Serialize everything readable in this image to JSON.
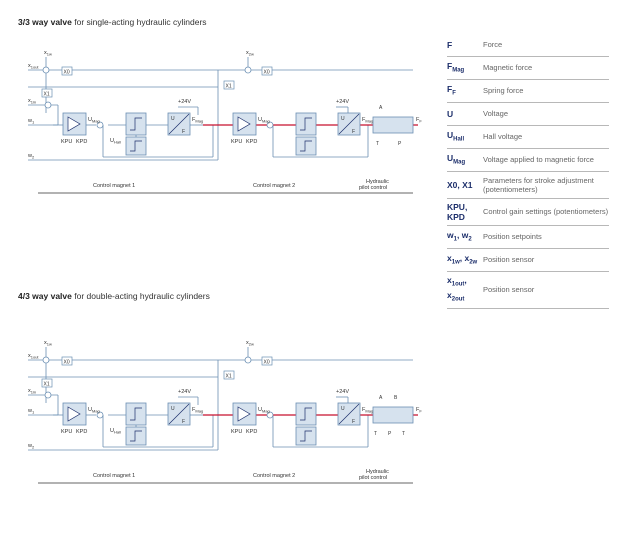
{
  "section1": {
    "title_bold": "3/3 way valve",
    "title_rest": " for single-acting hydraulic cylinders"
  },
  "section2": {
    "title_bold": "4/3 way valve",
    "title_rest": " for double-acting hydraulic cylinders"
  },
  "diagram_labels": {
    "x1w": "x",
    "x1w_sub": "1w",
    "x1out": "x",
    "x1out_sub": "1out",
    "x1in": "x",
    "x1in_sub": "1in",
    "w1": "w",
    "w1_sub": "1",
    "w2": "w",
    "w2_sub": "2",
    "x2w": "x",
    "x2w_sub": "2w",
    "x0": "X0",
    "x1": "X1",
    "umag": "U",
    "umag_sub": "Mag",
    "uhall": "U",
    "uhall_sub": "Hall",
    "kpu": "KPU",
    "kpd": "KPD",
    "v24": "+24V",
    "fmag": "F",
    "fmag_sub": "Mag",
    "ff": "F",
    "ff_sub": "F",
    "u": "U",
    "f": "F",
    "a": "A",
    "b": "B",
    "t": "T",
    "p": "P",
    "control_magnet_1": "Control magnet 1",
    "control_magnet_2": "Control magnet 2",
    "hydraulic": "Hydraulic",
    "pilot_control": "pilot control"
  },
  "legend": [
    {
      "sym": "F",
      "sub": "",
      "desc": "Force"
    },
    {
      "sym": "F",
      "sub": "Mag",
      "desc": "Magnetic force"
    },
    {
      "sym": "F",
      "sub": "F",
      "desc": "Spring force"
    },
    {
      "sym": "U",
      "sub": "",
      "desc": "Voltage"
    },
    {
      "sym": "U",
      "sub": "Hall",
      "desc": "Hall voltage"
    },
    {
      "sym": "U",
      "sub": "Mag",
      "desc": "Voltage applied to magnetic force"
    },
    {
      "sym": "X0, X1",
      "sub": "",
      "desc": "Parameters for stroke adjustment (potentiometers)"
    },
    {
      "sym": "KPU, KPD",
      "sub": "",
      "desc": "Control gain settings (potentiometers)"
    },
    {
      "sym": "w1, w2",
      "sub": "",
      "desc": "Position setpoints"
    },
    {
      "sym": "x1w, x2w",
      "sub": "",
      "desc": "Position sensor"
    },
    {
      "sym": "x1out, x2out",
      "sub": "",
      "desc": "Position sensor"
    }
  ],
  "colors": {
    "accent": "#1d2f6b",
    "line": "#6b8fb3",
    "red": "#c8102e",
    "block": "#d6e2ee"
  }
}
